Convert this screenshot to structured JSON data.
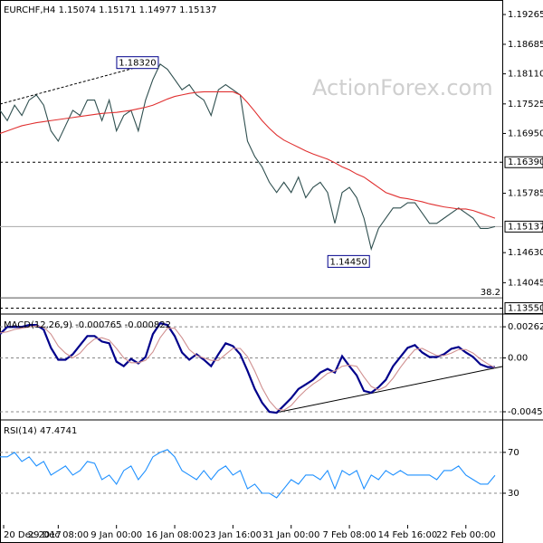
{
  "chart_data": [
    {
      "type": "line",
      "title": "EURCHF,H4 1.15074 1.15171 1.14977 1.15137",
      "watermark": "ActionForex.com",
      "ylim": [
        1.1347,
        1.1953
      ],
      "yticks": [
        {
          "value": 1.19265,
          "label": "1.19265"
        },
        {
          "value": 1.18685,
          "label": "1.18685"
        },
        {
          "value": 1.1811,
          "label": "1.18110"
        },
        {
          "value": 1.17525,
          "label": "1.17525"
        },
        {
          "value": 1.1695,
          "label": "1.16950"
        },
        {
          "value": 1.15785,
          "label": "1.15785"
        },
        {
          "value": 1.1463,
          "label": "1.14630"
        },
        {
          "value": 1.14045,
          "label": "1.14045"
        }
      ],
      "levels": [
        {
          "value": 1.1639,
          "label": "1.16390",
          "style": "dashed"
        },
        {
          "value": 1.15137,
          "label": "1.15137",
          "style": "solid"
        },
        {
          "value": 1.1355,
          "label": "1.13550",
          "style": "dashed"
        },
        {
          "value": 1.1375,
          "label": "38.2",
          "style": "fib"
        }
      ],
      "callouts": [
        {
          "x": 22,
          "value": 1.1832,
          "label": "1.18320"
        },
        {
          "x": 51,
          "value": 1.1445,
          "label": "1.14450"
        }
      ],
      "series": [
        {
          "color": "#2f4f4f",
          "values": [
            1.174,
            1.172,
            1.175,
            1.173,
            1.176,
            1.177,
            1.175,
            1.17,
            1.168,
            1.171,
            1.174,
            1.173,
            1.176,
            1.176,
            1.172,
            1.176,
            1.17,
            1.173,
            1.174,
            1.17,
            1.176,
            1.18,
            1.183,
            1.182,
            1.18,
            1.178,
            1.179,
            1.177,
            1.176,
            1.173,
            1.178,
            1.179,
            1.178,
            1.177,
            1.168,
            1.165,
            1.163,
            1.16,
            1.158,
            1.16,
            1.158,
            1.161,
            1.157,
            1.159,
            1.16,
            1.158,
            1.152,
            1.158,
            1.159,
            1.157,
            1.153,
            1.147,
            1.151,
            1.153,
            1.155,
            1.155,
            1.156,
            1.156,
            1.154,
            1.152,
            1.152,
            1.153,
            1.154,
            1.155,
            1.154,
            1.153,
            1.151,
            1.151,
            1.15137
          ]
        },
        {
          "color": "#e03030",
          "values": [
            1.1695,
            1.17,
            1.1705,
            1.171,
            1.1713,
            1.1716,
            1.1718,
            1.172,
            1.1722,
            1.1724,
            1.1726,
            1.1728,
            1.173,
            1.1732,
            1.1734,
            1.1735,
            1.1736,
            1.1738,
            1.174,
            1.1743,
            1.1746,
            1.175,
            1.1756,
            1.1762,
            1.1767,
            1.177,
            1.1773,
            1.1775,
            1.1776,
            1.1776,
            1.1776,
            1.1776,
            1.1776,
            1.177,
            1.1755,
            1.1738,
            1.172,
            1.1705,
            1.1692,
            1.1682,
            1.1675,
            1.1668,
            1.1661,
            1.1655,
            1.165,
            1.1645,
            1.1638,
            1.163,
            1.1624,
            1.1616,
            1.161,
            1.16,
            1.159,
            1.158,
            1.1575,
            1.157,
            1.1568,
            1.1565,
            1.1562,
            1.1558,
            1.1555,
            1.1552,
            1.155,
            1.1548,
            1.1548,
            1.1545,
            1.154,
            1.1535,
            1.153
          ]
        }
      ]
    },
    {
      "type": "line",
      "title": "MACD(12,26,9) -0.000765 -0.000822",
      "ylim": [
        -0.00506,
        0.00354
      ],
      "yticks": [
        0.00262,
        {
          "value": 0,
          "label": "0.00"
        },
        -0.004526
      ],
      "series": [
        {
          "color": "#00008b",
          "values": [
            0.002,
            0.00261,
            0.00261,
            0.00261,
            0.00277,
            0.00277,
            0.00238,
            0.00085,
            -0.00015,
            -0.00015,
            0.00031,
            0.00108,
            0.00184,
            0.00184,
            0.00138,
            0.00123,
            -0.00031,
            -0.00069,
            -8e-05,
            -0.00046,
            8e-05,
            0.002,
            0.00292,
            0.00277,
            0.00184,
            0.00046,
            -0.00015,
            0.00031,
            -0.00015,
            -0.00069,
            0.00031,
            0.00123,
            0.001,
            0.00031,
            -0.00108,
            -0.00261,
            -0.00376,
            -0.00453,
            -0.00461,
            -0.004,
            -0.00338,
            -0.00261,
            -0.00223,
            -0.00184,
            -0.00123,
            -0.00092,
            -0.00123,
            0.00015,
            -0.00069,
            -0.00146,
            -0.00277,
            -0.00292,
            -0.00246,
            -0.00184,
            -0.00069,
            8e-05,
            0.00085,
            0.00108,
            0.00046,
            8e-05,
            8e-05,
            0.00031,
            0.00077,
            0.00092,
            0.00046,
            8e-05,
            -0.00054,
            -0.00077,
            -0.000765
          ]
        },
        {
          "color": "#d09090",
          "values": [
            0.0021,
            0.0022,
            0.0024,
            0.0025,
            0.0026,
            0.0027,
            0.0026,
            0.002,
            0.001,
            0.0004,
            0,
            0.0004,
            0.0011,
            0.0016,
            0.0017,
            0.0015,
            0.0008,
            0,
            -0.0004,
            -0.0004,
            -0.0002,
            0.0005,
            0.0017,
            0.0025,
            0.0025,
            0.0017,
            0.0007,
            0.0002,
            0,
            -0.0002,
            -0.0002,
            0.0003,
            0.0008,
            0.0008,
            0.0001,
            -0.0011,
            -0.0025,
            -0.0036,
            -0.0043,
            -0.0044,
            -0.004,
            -0.0033,
            -0.0027,
            -0.0022,
            -0.0018,
            -0.0013,
            -0.0011,
            -0.0007,
            -0.0006,
            -0.0007,
            -0.0016,
            -0.0024,
            -0.0027,
            -0.0024,
            -0.0017,
            -0.0008,
            0,
            0.0007,
            0.0008,
            0.0005,
            0.0002,
            0.0002,
            0.0004,
            0.0007,
            0.0007,
            0.0004,
            -0.0001,
            -0.0005,
            -0.000822
          ]
        }
      ]
    },
    {
      "type": "line",
      "title": "RSI(14) 47.4741",
      "ylim": [
        -1,
        100
      ],
      "yticks": [
        70,
        30
      ],
      "xlim": [
        0,
        69
      ],
      "xticks": [
        {
          "value": 0.5,
          "label": "20 Dec 2017"
        },
        {
          "value": 8,
          "label": "29 Dec 08:00"
        },
        {
          "value": 16,
          "label": "9 Jan 00:00"
        },
        {
          "value": 24,
          "label": "16 Jan 08:00"
        },
        {
          "value": 32,
          "label": "23 Jan 16:00"
        },
        {
          "value": 40,
          "label": "31 Jan 00:00"
        },
        {
          "value": 48,
          "label": "7 Feb 08:00"
        },
        {
          "value": 56,
          "label": "14 Feb 16:00"
        },
        {
          "value": 64,
          "label": "22 Feb 00:00"
        }
      ],
      "series": [
        {
          "color": "#1e90ff",
          "values": [
            65.6,
            65.6,
            70,
            61.1,
            65.6,
            56.7,
            61.1,
            47.8,
            52.2,
            56.7,
            47.8,
            52.2,
            61.1,
            59.3,
            43.3,
            47.8,
            38.9,
            52.2,
            56.7,
            43.3,
            52.2,
            65.6,
            70,
            72.7,
            65.6,
            52.2,
            47.8,
            43.3,
            52.2,
            43.3,
            52.2,
            56.7,
            47.8,
            52.2,
            34.4,
            38.9,
            30,
            30,
            25.6,
            34.4,
            43.3,
            38.9,
            47.8,
            47.8,
            43.3,
            52.2,
            34.4,
            52.2,
            47.8,
            52.2,
            34.4,
            47.8,
            43.3,
            52.2,
            47.8,
            52.2,
            47.8,
            47.8,
            47.8,
            47.8,
            43.3,
            52.2,
            52.2,
            56.7,
            47.8,
            43.3,
            38.9,
            38.9,
            47.4741
          ]
        }
      ]
    }
  ]
}
